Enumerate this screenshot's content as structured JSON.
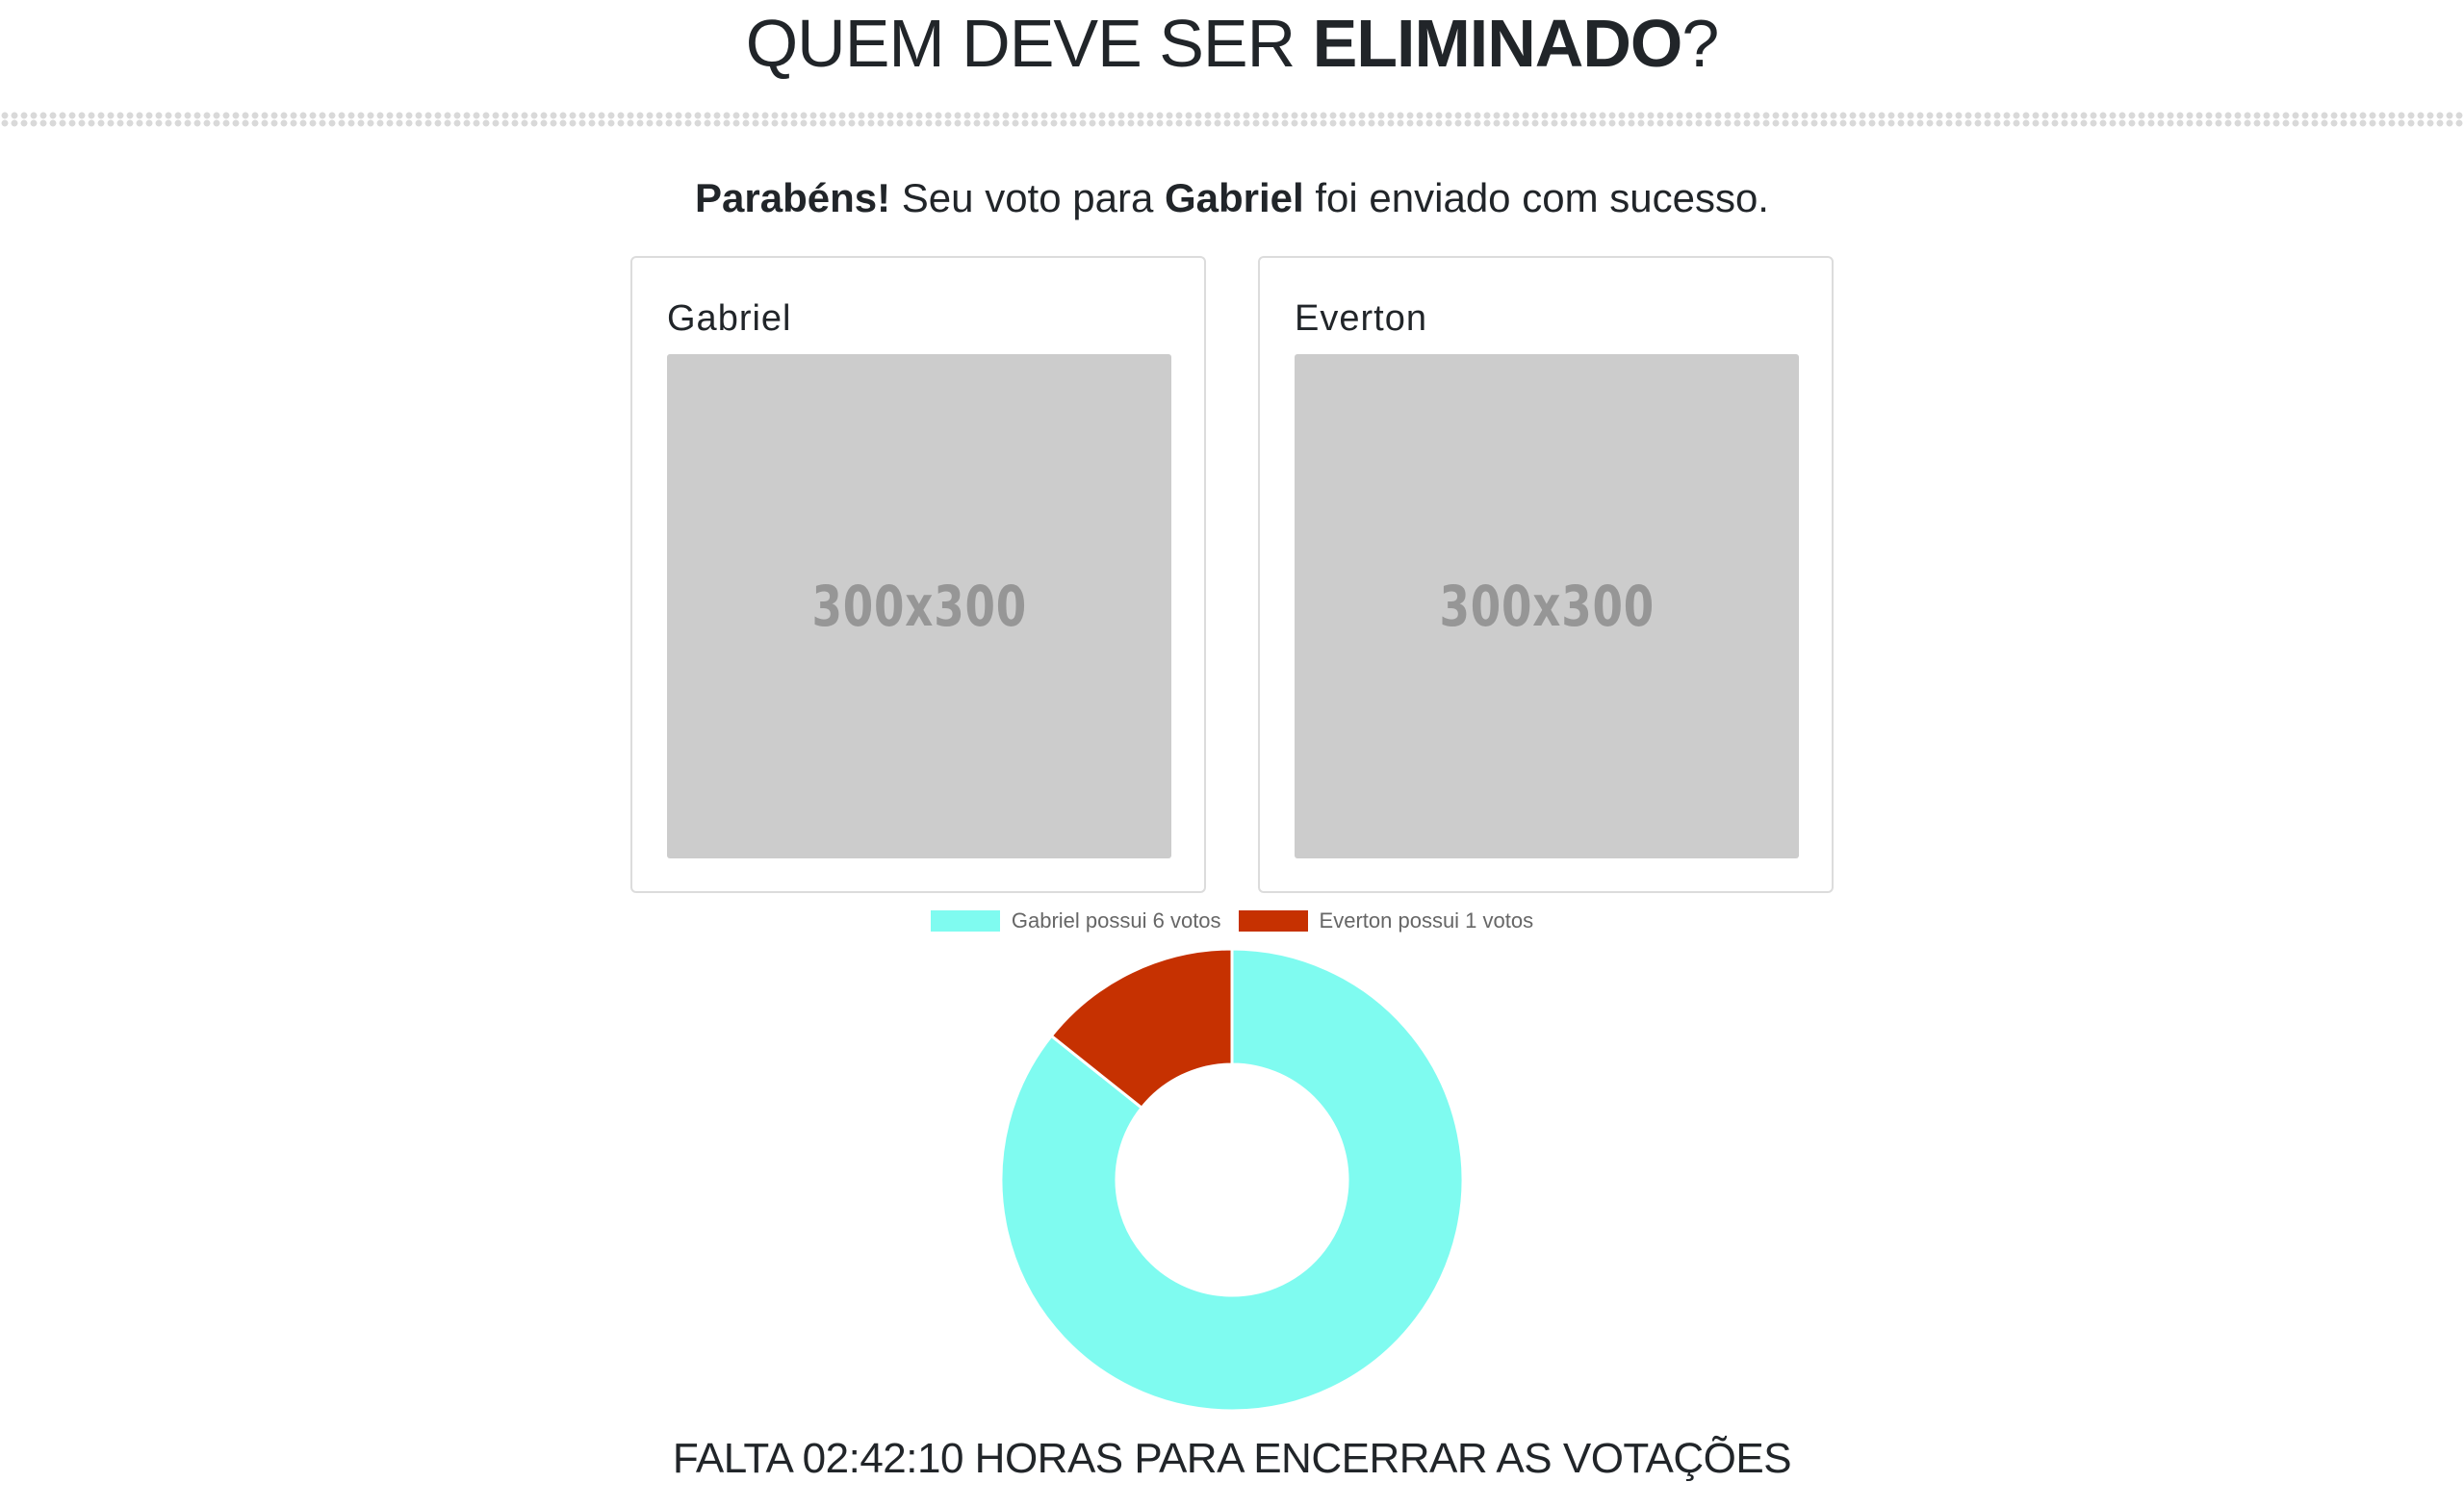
{
  "header": {
    "title_prefix": "QUEM DEVE SER ",
    "title_bold": "ELIMINADO",
    "title_suffix": "?"
  },
  "result": {
    "congrats": "Parabéns!",
    "text_before": " Seu voto para ",
    "candidate": "Gabriel",
    "text_after": " foi enviado com sucesso."
  },
  "candidates": [
    {
      "name": "Gabriel",
      "image_label": "300x300"
    },
    {
      "name": "Everton",
      "image_label": "300x300"
    }
  ],
  "chart_data": {
    "type": "pie",
    "variant": "doughnut",
    "categories": [
      "Gabriel possui 6 votos",
      "Everton possui 1 votos"
    ],
    "values": [
      6,
      1
    ],
    "colors": [
      "#7ffbf0",
      "#c63101"
    ],
    "legend_position": "top"
  },
  "countdown": {
    "text": "FALTA 02:42:10 HORAS PARA ENCERRAR AS VOTAÇÕES"
  }
}
